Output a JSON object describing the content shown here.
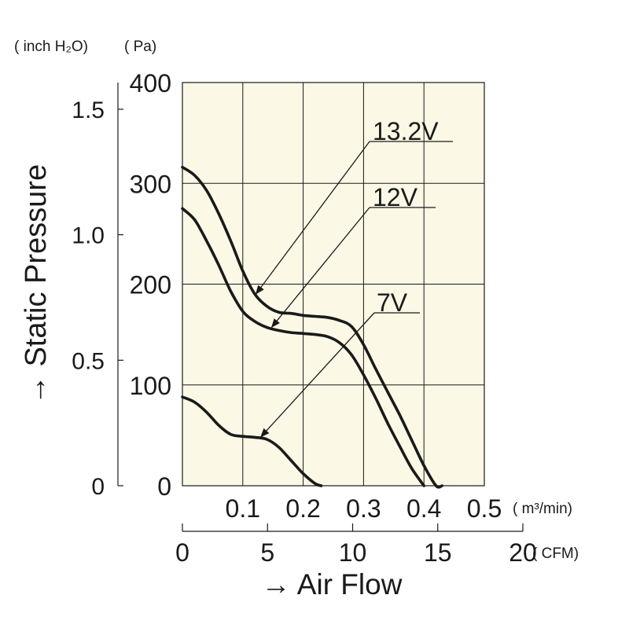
{
  "chart_data": {
    "type": "line",
    "title": "",
    "ylabel": "→ Static Pressure",
    "xlabel": "→ Air Flow",
    "y_unit_inch": "( inch H₂O)",
    "y_unit_pa": "( Pa)",
    "x_unit_m3": "( m³/min)",
    "x_unit_cfm": "( CFM)",
    "ylim_pa": [
      0,
      400
    ],
    "xlim_m3": [
      0,
      0.5
    ],
    "xlim_cfm": [
      0,
      20
    ],
    "y_ticks_pa": [
      0,
      100,
      200,
      300,
      400
    ],
    "y_ticks_inch": [
      {
        "label": "0",
        "pa": 0
      },
      {
        "label": "0.5",
        "pa": 124.5
      },
      {
        "label": "1.0",
        "pa": 249
      },
      {
        "label": "1.5",
        "pa": 373.5
      }
    ],
    "x_ticks_m3": [
      {
        "label": "0.1",
        "value": 0.1
      },
      {
        "label": "0.2",
        "value": 0.2
      },
      {
        "label": "0.3",
        "value": 0.3
      },
      {
        "label": "0.4",
        "value": 0.4
      },
      {
        "label": "0.5",
        "value": 0.5
      }
    ],
    "x_ticks_cfm": [
      {
        "label": "0",
        "value": 0
      },
      {
        "label": "5",
        "value": 5
      },
      {
        "label": "10",
        "value": 10
      },
      {
        "label": "15",
        "value": 15
      },
      {
        "label": "20",
        "value": 20
      }
    ],
    "grid": true,
    "plot_bg": "#fbf8e6",
    "line_color": "#1a1a1a",
    "series": [
      {
        "name": "13.2V",
        "x": [
          0,
          0.02,
          0.04,
          0.06,
          0.08,
          0.1,
          0.12,
          0.14,
          0.16,
          0.18,
          0.2,
          0.22,
          0.24,
          0.26,
          0.28,
          0.3,
          0.32,
          0.34,
          0.36,
          0.38,
          0.4,
          0.42,
          0.43
        ],
        "y": [
          316,
          308,
          293,
          270,
          243,
          213,
          190,
          178,
          172,
          171,
          169,
          168,
          167,
          164,
          158,
          140,
          116,
          93,
          70,
          45,
          20,
          0,
          0
        ]
      },
      {
        "name": "12V",
        "x": [
          0,
          0.02,
          0.04,
          0.06,
          0.08,
          0.1,
          0.12,
          0.14,
          0.16,
          0.18,
          0.2,
          0.22,
          0.24,
          0.26,
          0.28,
          0.3,
          0.32,
          0.34,
          0.36,
          0.38,
          0.4
        ],
        "y": [
          275,
          264,
          243,
          219,
          193,
          173,
          163,
          157,
          154,
          152,
          151,
          150,
          148,
          142,
          130,
          110,
          87,
          62,
          39,
          17,
          0
        ]
      },
      {
        "name": "7V",
        "x": [
          0,
          0.02,
          0.04,
          0.06,
          0.08,
          0.1,
          0.12,
          0.14,
          0.16,
          0.18,
          0.2,
          0.22,
          0.23
        ],
        "y": [
          88,
          83,
          73,
          60,
          51,
          49,
          48,
          46,
          38,
          25,
          12,
          2,
          0
        ]
      }
    ],
    "annotations": [
      {
        "text": "13.2V",
        "series": "13.2V"
      },
      {
        "text": "12V",
        "series": "12V"
      },
      {
        "text": "7V",
        "series": "7V"
      }
    ]
  }
}
